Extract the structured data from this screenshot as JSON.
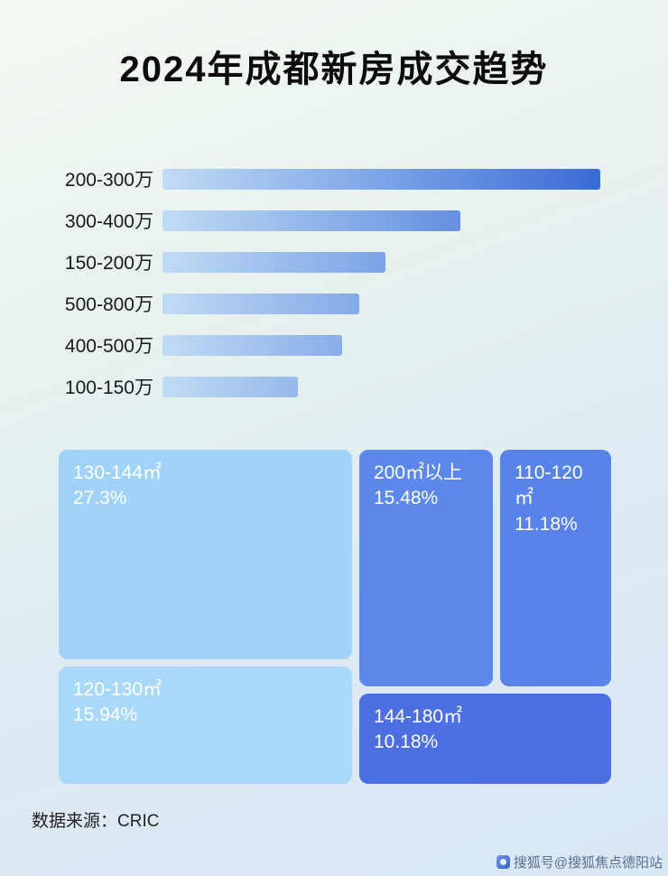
{
  "title": "2024年成都新房成交趋势",
  "footer_source": "数据来源：CRIC",
  "watermark": "搜狐号@搜狐焦点德阳站",
  "colors": {
    "background_top": "#f4f9f3",
    "background_bottom": "#d9e6f4",
    "bar_gradient_start": "#c0dbf4",
    "bar_gradient_end": "#3a6ad6",
    "title_text": "#0c0c0c",
    "treemap_text": "#ffffff"
  },
  "chart_data": [
    {
      "type": "bar",
      "orientation": "horizontal",
      "title": "2024年成都新房成交趋势",
      "categories": [
        "200-300万",
        "300-400万",
        "150-200万",
        "500-800万",
        "400-500万",
        "100-150万"
      ],
      "values": [
        100,
        68,
        51,
        45,
        41,
        31
      ],
      "value_note": "relative bar lengths, max bar = 100; numeric values are not labeled in the image",
      "xlabel": "",
      "ylabel": "",
      "grid": false,
      "legend": false
    },
    {
      "type": "treemap",
      "segments": [
        {
          "label": "130-144㎡",
          "value_pct": 27.3,
          "value_label": "27.3%",
          "color": "#a0d3f7"
        },
        {
          "label": "200㎡以上",
          "value_pct": 15.48,
          "value_label": "15.48%",
          "color": "#5c88eb"
        },
        {
          "label": "110-120㎡",
          "value_pct": 11.18,
          "value_label": "11.18%",
          "color": "#5884e9"
        },
        {
          "label": "120-130㎡",
          "value_pct": 15.94,
          "value_label": "15.94%",
          "color": "#a9d8f8"
        },
        {
          "label": "144-180㎡",
          "value_pct": 10.18,
          "value_label": "10.18%",
          "color": "#4d6fe2"
        }
      ],
      "legend": false
    }
  ]
}
